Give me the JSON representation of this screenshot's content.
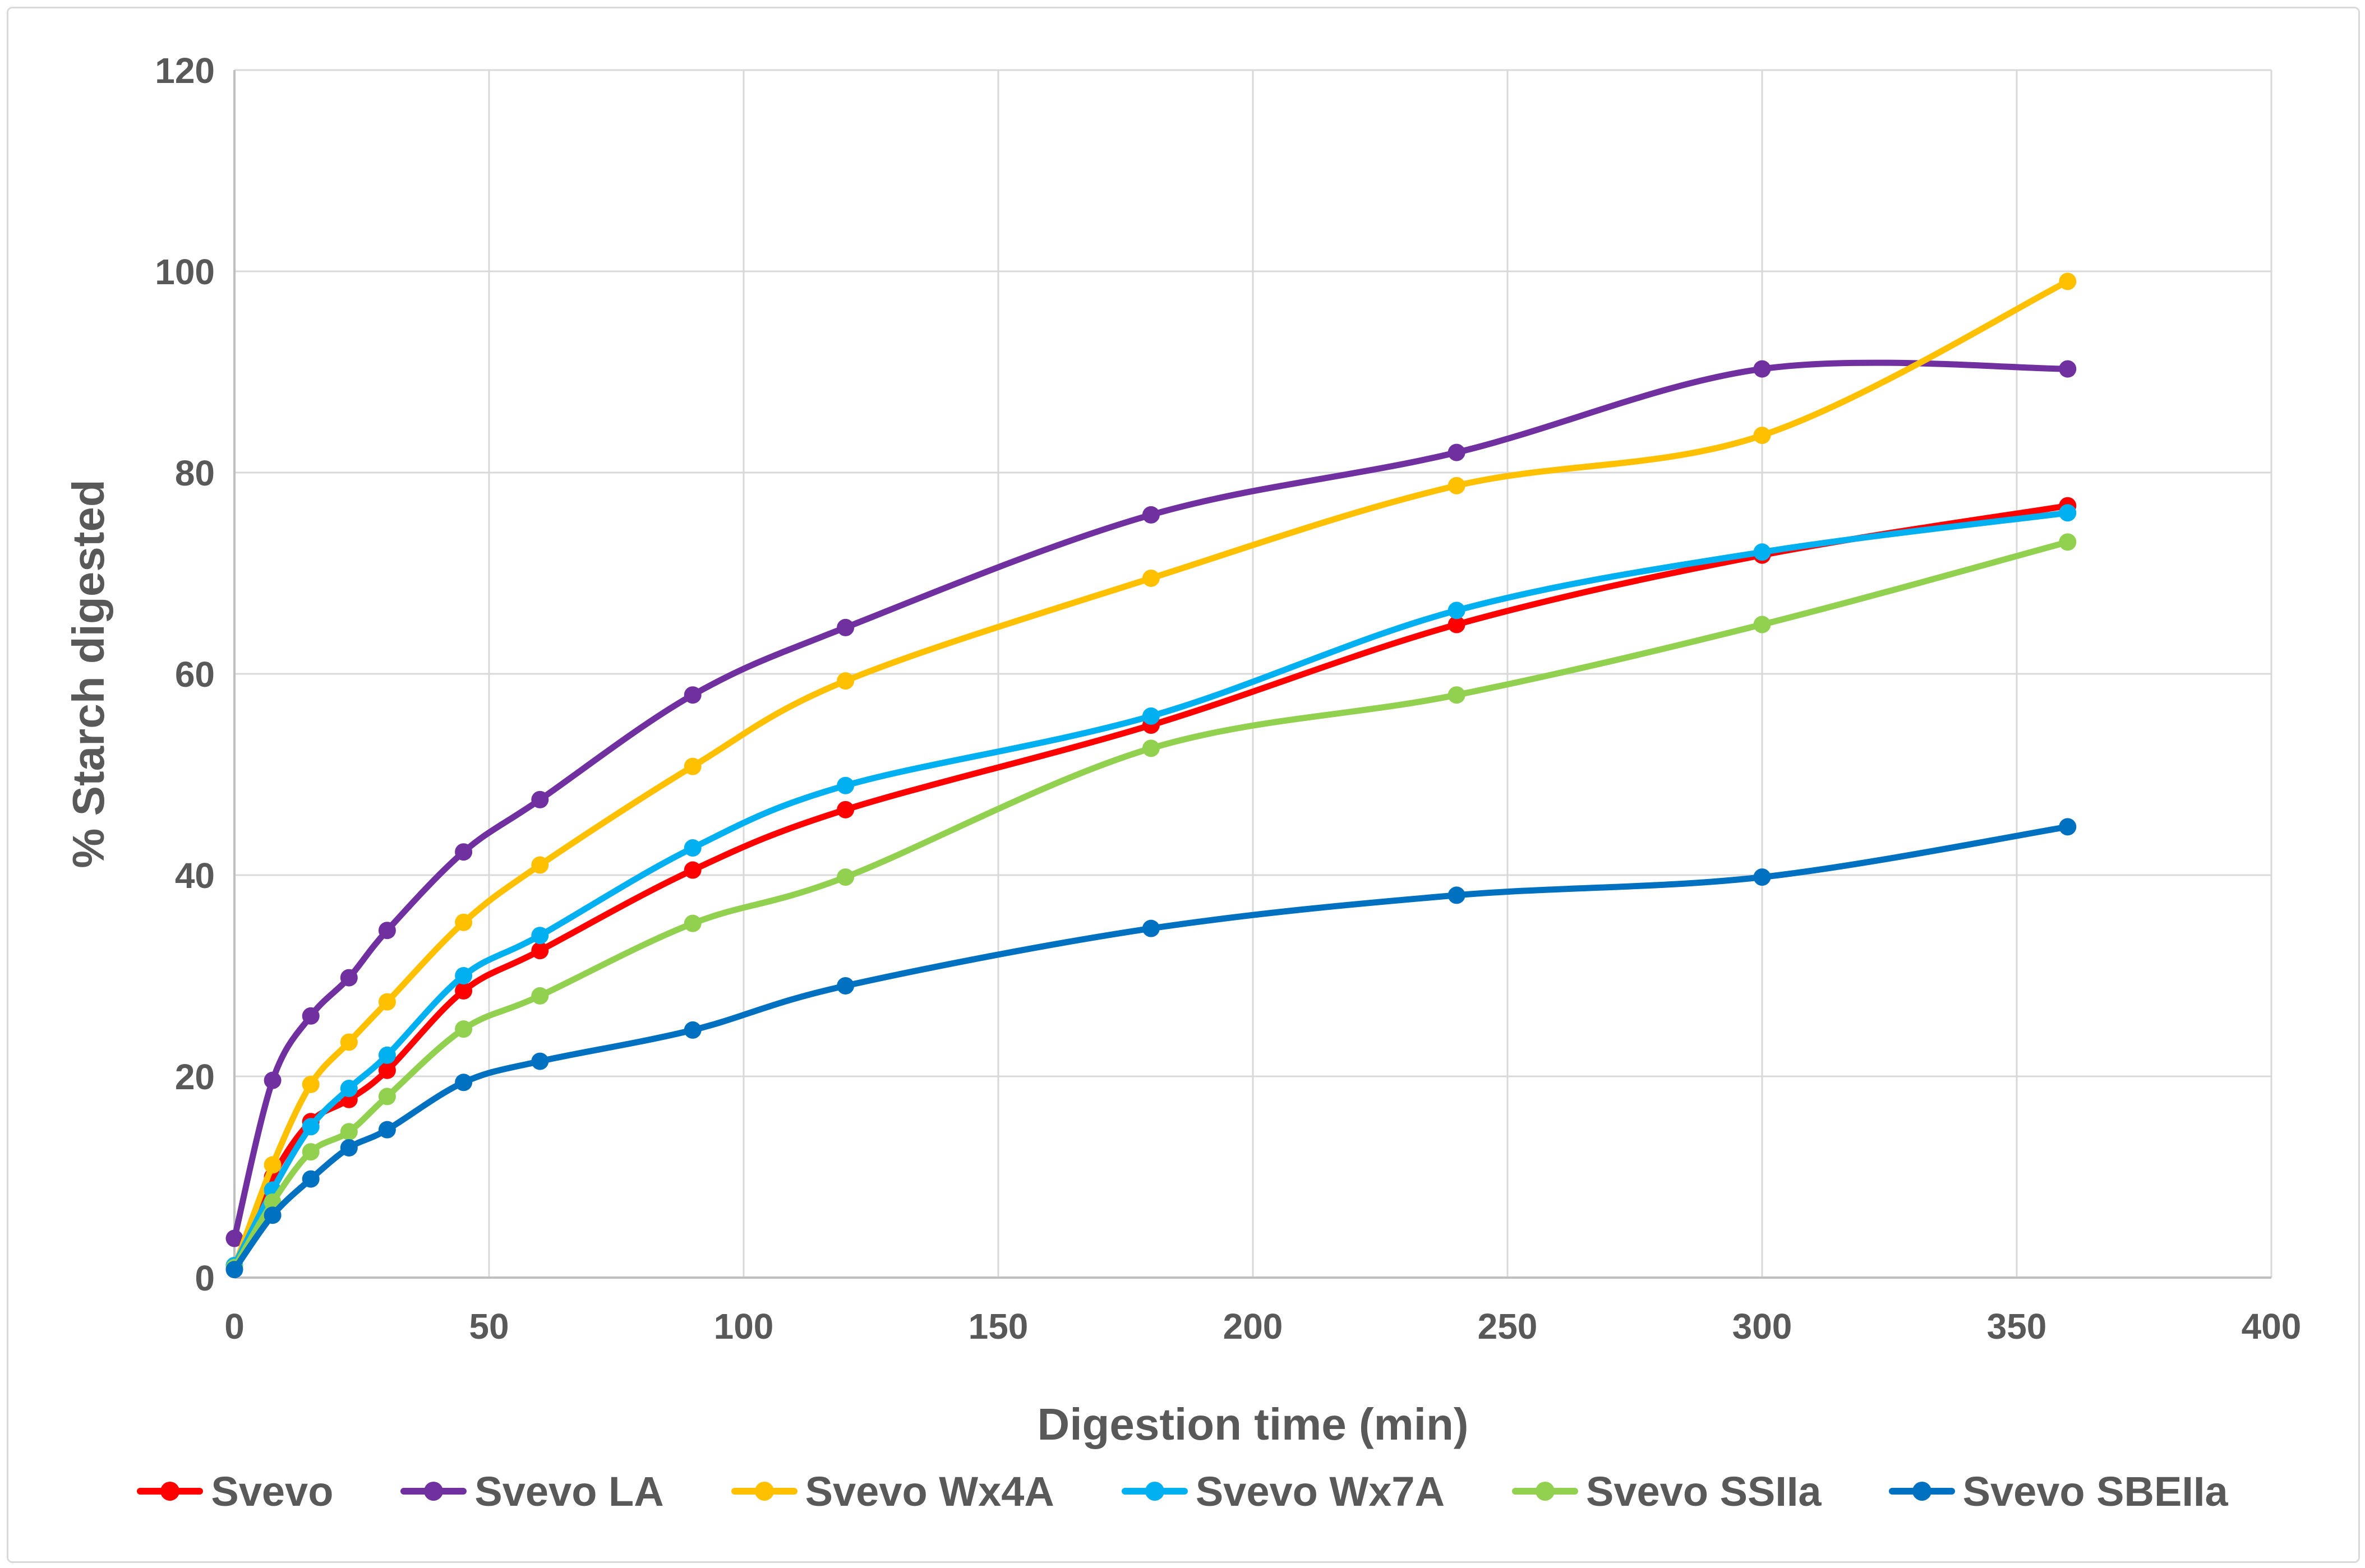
{
  "chart_data": {
    "type": "line",
    "title": "",
    "xlabel": "Digestion time (min)",
    "ylabel": "% Starch digested",
    "line_style": "smooth",
    "grid": true,
    "legend_position": "bottom",
    "xlim": [
      0,
      400
    ],
    "ylim": [
      0,
      120
    ],
    "x_ticks": [
      0,
      50,
      100,
      150,
      200,
      250,
      300,
      350,
      400
    ],
    "y_ticks": [
      0,
      20,
      40,
      60,
      80,
      100,
      120
    ],
    "x": [
      0,
      7.5,
      15,
      22.5,
      30,
      45,
      60,
      90,
      120,
      180,
      240,
      300,
      360
    ],
    "series": [
      {
        "name": "Svevo",
        "color": "#FF0000",
        "values": [
          1.0,
          10.0,
          15.5,
          17.7,
          20.6,
          28.5,
          32.5,
          40.5,
          46.5,
          54.9,
          64.9,
          71.8,
          76.7
        ]
      },
      {
        "name": "Svevo LA",
        "color": "#7030A0",
        "values": [
          3.9,
          19.6,
          26.0,
          29.8,
          34.5,
          42.3,
          47.5,
          57.9,
          64.6,
          75.8,
          82.0,
          90.3,
          90.3
        ]
      },
      {
        "name": "Svevo Wx4A",
        "color": "#FFC000",
        "values": [
          1.0,
          11.2,
          19.2,
          23.4,
          27.4,
          35.3,
          41.0,
          50.8,
          59.3,
          69.5,
          78.7,
          83.7,
          99.0
        ]
      },
      {
        "name": "Svevo Wx7A",
        "color": "#00B0F0",
        "values": [
          1.2,
          8.7,
          15.0,
          18.8,
          22.1,
          30.0,
          34.0,
          42.7,
          48.9,
          55.8,
          66.3,
          72.1,
          76.0
        ]
      },
      {
        "name": "Svevo SSIIa",
        "color": "#92D050",
        "values": [
          1.0,
          7.5,
          12.5,
          14.5,
          18.0,
          24.7,
          28.0,
          35.2,
          39.8,
          52.6,
          57.9,
          64.9,
          73.1
        ]
      },
      {
        "name": "Svevo SBEIIa",
        "color": "#0070C0",
        "values": [
          0.8,
          6.2,
          9.8,
          12.9,
          14.7,
          19.4,
          21.5,
          24.6,
          29.0,
          34.7,
          38.0,
          39.8,
          44.8
        ]
      }
    ],
    "colors": {
      "grid": "#D9D9D9",
      "axis": "#BFBFBF",
      "text": "#595959",
      "frame_border": "#D9D9D9",
      "background": "#FFFFFF"
    }
  }
}
